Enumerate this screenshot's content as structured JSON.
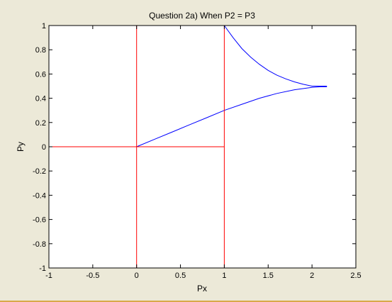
{
  "chart_data": {
    "type": "line",
    "title": "Question 2a) When P2 = P3",
    "xlabel": "Px",
    "ylabel": "Py",
    "xlim": [
      -1,
      2.5
    ],
    "ylim": [
      -1,
      1
    ],
    "grid": false,
    "x_ticks": [
      "-1",
      "-0.5",
      "0",
      "0.5",
      "1",
      "1.5",
      "2",
      "2.5"
    ],
    "x_tick_values": [
      -1,
      -0.5,
      0,
      0.5,
      1,
      1.5,
      2,
      2.5
    ],
    "y_ticks": [
      "-1",
      "-0.8",
      "-0.6",
      "-0.4",
      "-0.2",
      "0",
      "0.2",
      "0.4",
      "0.6",
      "0.8",
      "1"
    ],
    "y_tick_values": [
      -1,
      -0.8,
      -0.6,
      -0.4,
      -0.2,
      0,
      0.2,
      0.4,
      0.6,
      0.8,
      1
    ],
    "series": [
      {
        "color": "#0000ff",
        "x": [
          0,
          0.2,
          0.4,
          0.6,
          0.8,
          1.0,
          1.2,
          1.4,
          1.6,
          1.8,
          2.0,
          2.1,
          2.17
        ],
        "y": [
          0,
          0.06,
          0.12,
          0.18,
          0.24,
          0.3,
          0.35,
          0.4,
          0.44,
          0.47,
          0.49,
          0.495,
          0.495
        ]
      },
      {
        "color": "#0000ff",
        "x": [
          1.0,
          1.1,
          1.2,
          1.3,
          1.4,
          1.5,
          1.6,
          1.7,
          1.8,
          1.9,
          2.0,
          2.1,
          2.17
        ],
        "y": [
          1.0,
          0.9,
          0.81,
          0.74,
          0.68,
          0.63,
          0.59,
          0.56,
          0.535,
          0.515,
          0.5,
          0.5,
          0.5
        ]
      },
      {
        "color": "#ff0000",
        "x": [
          -1,
          1
        ],
        "y": [
          0,
          0
        ]
      },
      {
        "color": "#ff0000",
        "x": [
          0,
          0
        ],
        "y": [
          -1,
          1
        ]
      },
      {
        "color": "#ff0000",
        "x": [
          1,
          1
        ],
        "y": [
          -1,
          1
        ]
      },
      {
        "color": "#ff0000",
        "x": [
          -1,
          1
        ],
        "y": [
          1,
          1
        ]
      },
      {
        "color": "#ff0000",
        "x": [
          -1,
          1
        ],
        "y": [
          -1,
          -1
        ]
      },
      {
        "color": "#ff0000",
        "x": [
          -1,
          -1
        ],
        "y": [
          -1,
          1
        ]
      }
    ]
  }
}
